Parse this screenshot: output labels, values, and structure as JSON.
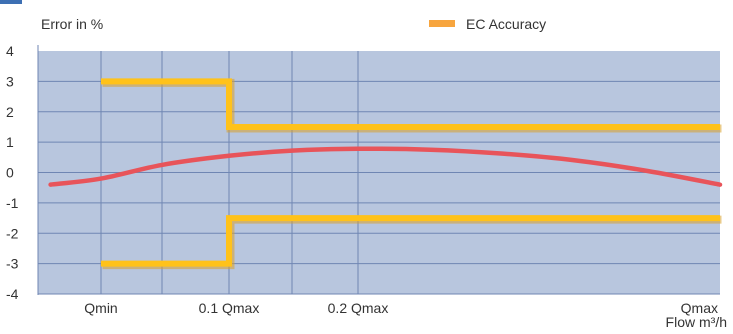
{
  "chart_data": {
    "type": "line",
    "ylabel": "Error in %",
    "xlabel": "Flow m³/h",
    "legend": {
      "label": "EC Accuracy",
      "position": "top-right"
    },
    "colors": {
      "background": "#b8c6de",
      "grid": "#6f86b3",
      "accuracy": "#ffc21a",
      "accuracy_shadow": "#d8a02a",
      "legend_swatch": "#f7a53e",
      "curve": "#e8545a",
      "top_accent": "#3d6fb3"
    },
    "grid": true,
    "ylim": [
      -4,
      4
    ],
    "yticks": [
      4,
      3,
      2,
      1,
      0,
      -1,
      -2,
      -3,
      -4
    ],
    "ytick_labels": [
      "4",
      "3",
      "2",
      "1",
      "0",
      "-1",
      "-2",
      "-3",
      "-4"
    ],
    "xlim": [
      0,
      10
    ],
    "x_gridlines": [
      1,
      2,
      3,
      4,
      5
    ],
    "x_ticks": [
      {
        "x": 1,
        "label": "Qmin"
      },
      {
        "x": 3,
        "label": "0.1 Qmax"
      },
      {
        "x": 5,
        "label": "0.2 Qmax"
      },
      {
        "x": 10,
        "label": "Qmax"
      }
    ],
    "series": [
      {
        "name": "EC Accuracy",
        "style": "step",
        "points": [
          [
            1,
            3
          ],
          [
            3,
            3
          ],
          [
            3,
            1.5
          ],
          [
            10,
            1.5
          ]
        ]
      },
      {
        "name": "EC Accuracy",
        "style": "step",
        "points": [
          [
            1,
            -3
          ],
          [
            3,
            -3
          ],
          [
            3,
            -1.5
          ],
          [
            10,
            -1.5
          ]
        ]
      },
      {
        "style": "curve",
        "points": [
          [
            0.2,
            -0.4
          ],
          [
            1,
            -0.2
          ],
          [
            2,
            0.25
          ],
          [
            3,
            0.55
          ],
          [
            4,
            0.72
          ],
          [
            5,
            0.78
          ],
          [
            6,
            0.75
          ],
          [
            7,
            0.62
          ],
          [
            8,
            0.4
          ],
          [
            9,
            0.05
          ],
          [
            10,
            -0.4
          ]
        ]
      }
    ]
  }
}
